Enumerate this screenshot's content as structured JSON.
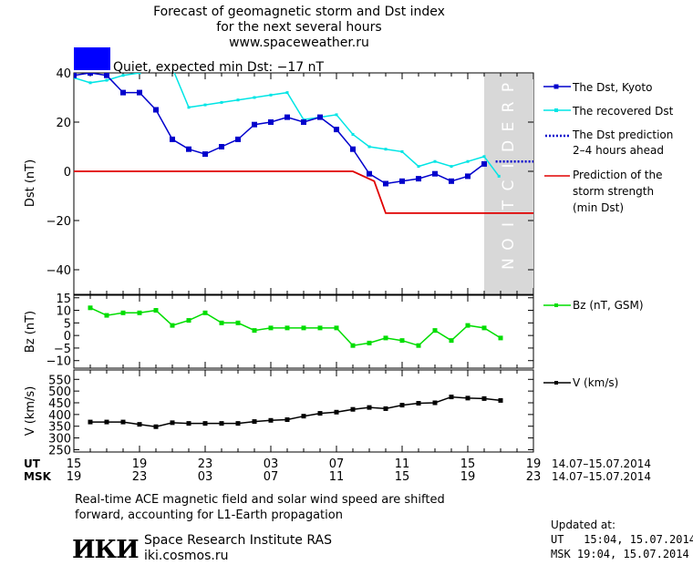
{
  "header": {
    "title": "Forecast of geomagnetic storm and Dst index",
    "subtitle": "for the next several hours",
    "url": "www.spaceweather.ru",
    "status_color": "#0000ff",
    "status_text": "Quiet, expected min Dst: −17 nT"
  },
  "legend": {
    "dst": "The Dst, Kyoto",
    "recovered": "The recovered Dst",
    "pred_l1": "The Dst prediction",
    "pred_l2": "2–4 hours ahead",
    "storm_l1": "Prediction of the",
    "storm_l2": "storm strength",
    "storm_l3": "(min Dst)",
    "bz": "Bz (nT, GSM)",
    "v": "V (km/s)"
  },
  "prediction_text": "PREDICTION",
  "time_axis": {
    "ut_label": "UT",
    "msk_label": "MSK",
    "ut_ticks": [
      "15",
      "19",
      "23",
      "03",
      "07",
      "11",
      "15",
      "19"
    ],
    "msk_ticks": [
      "19",
      "23",
      "03",
      "07",
      "11",
      "15",
      "19",
      "23"
    ],
    "range_ut": "14.07–15.07.2014",
    "range_msk": "14.07–15.07.2014"
  },
  "footer": {
    "note_l1": "Real-time ACE magnetic field and solar wind speed are shifted",
    "note_l2": "forward, accounting for L1-Earth propagation",
    "logo_text": "ИКИ",
    "org_name": "Space Research Institute RAS",
    "org_site": "iki.cosmos.ru",
    "updated_label": "Updated at:",
    "updated_ut": "UT   15:04, 15.07.2014",
    "updated_msk": "MSK 19:04, 15.07.2014"
  },
  "colors": {
    "dst": "#0000cc",
    "recovered": "#00e5e5",
    "prediction": "#0000cc",
    "storm": "#e00000",
    "bz": "#00dd00",
    "v": "#000000",
    "shade": "#d8d8d8"
  },
  "chart_data": [
    {
      "type": "line",
      "ylabel": "Dst (nT)",
      "ylim": [
        -50,
        40
      ],
      "yticks": [
        40,
        20,
        0,
        -20,
        -40
      ],
      "xlim": [
        15,
        43
      ],
      "series": [
        {
          "name": "The Dst, Kyoto",
          "x": [
            15,
            16,
            17,
            18,
            19,
            20,
            21,
            22,
            23,
            24,
            25,
            26,
            27,
            28,
            29,
            30,
            31,
            32,
            33,
            34,
            35,
            36,
            37,
            38,
            39,
            40
          ],
          "y": [
            39,
            40,
            39,
            32,
            32,
            25,
            13,
            9,
            7,
            10,
            13,
            19,
            20,
            22,
            20,
            22,
            17,
            9,
            -1,
            -5,
            -4,
            -3,
            -1,
            -4,
            -2,
            3
          ]
        },
        {
          "name": "The recovered Dst",
          "x": [
            15,
            16,
            17,
            18,
            19,
            20,
            21,
            22,
            23,
            24,
            25,
            26,
            27,
            28,
            29,
            30,
            31,
            32,
            33,
            34,
            35,
            36,
            37,
            38,
            39,
            40,
            40.9
          ],
          "y": [
            38,
            36,
            37,
            39,
            40,
            45,
            42,
            26,
            27,
            28,
            29,
            30,
            31,
            32,
            21,
            22,
            23,
            15,
            10,
            9,
            8,
            2,
            4,
            2,
            4,
            6,
            -2
          ]
        },
        {
          "name": "The Dst prediction 2–4 hours ahead",
          "x": [
            40.7,
            43.8
          ],
          "y": [
            4,
            4
          ]
        },
        {
          "name": "Prediction of the storm strength (min Dst)",
          "x": [
            15,
            32,
            33.3,
            34,
            43
          ],
          "y": [
            0,
            0,
            -4,
            -17,
            -17
          ]
        }
      ]
    },
    {
      "type": "line",
      "ylabel": "Bz (nT)",
      "ylim": [
        -13,
        16
      ],
      "yticks": [
        15,
        10,
        5,
        0,
        -5,
        -10
      ],
      "xlim": [
        15,
        43
      ],
      "series": [
        {
          "name": "Bz (nT, GSM)",
          "x": [
            16,
            17,
            18,
            19,
            20,
            21,
            22,
            23,
            24,
            25,
            26,
            27,
            28,
            29,
            30,
            31,
            32,
            33,
            34,
            35,
            36,
            37,
            38,
            39,
            40,
            41
          ],
          "y": [
            11,
            8,
            9,
            9,
            10,
            4,
            6,
            9,
            5,
            5,
            2,
            3,
            3,
            3,
            3,
            3,
            -4,
            -3,
            -1,
            -2,
            -4,
            2,
            -2,
            4,
            3,
            -1
          ]
        }
      ]
    },
    {
      "type": "line",
      "ylabel": "V (km/s)",
      "ylim": [
        240,
        590
      ],
      "yticks": [
        550,
        500,
        450,
        400,
        350,
        300,
        250
      ],
      "xlim": [
        15,
        43
      ],
      "series": [
        {
          "name": "V (km/s)",
          "x": [
            16,
            17,
            18,
            19,
            20,
            21,
            22,
            23,
            24,
            25,
            26,
            27,
            28,
            29,
            30,
            31,
            32,
            33,
            34,
            35,
            36,
            37,
            38,
            39,
            40,
            41
          ],
          "y": [
            368,
            368,
            368,
            358,
            348,
            365,
            362,
            362,
            362,
            362,
            370,
            375,
            378,
            393,
            405,
            410,
            422,
            430,
            425,
            440,
            448,
            450,
            475,
            470,
            468,
            460
          ]
        }
      ]
    }
  ]
}
